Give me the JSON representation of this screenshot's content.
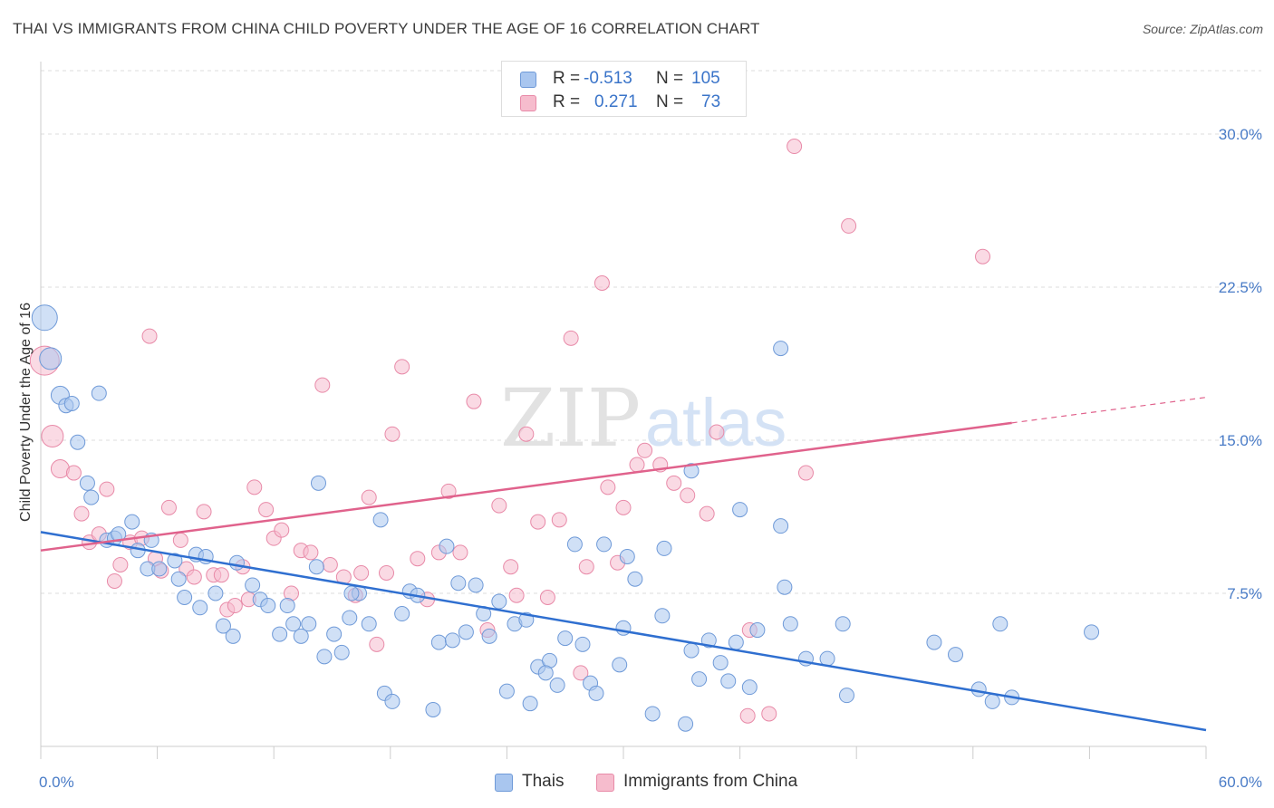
{
  "header": {
    "title": "THAI VS IMMIGRANTS FROM CHINA CHILD POVERTY UNDER THE AGE OF 16 CORRELATION CHART",
    "source": "Source: ZipAtlas.com"
  },
  "watermark": {
    "part1": "ZIP",
    "part2": "atlas"
  },
  "colors": {
    "thais_fill": "#a9c6ef",
    "thais_stroke": "#6f9ad8",
    "thais_line": "#2f6fd0",
    "china_fill": "#f6bccd",
    "china_stroke": "#e88aa8",
    "china_line": "#e0628c",
    "tick_text": "#4a7cc7",
    "grid": "#dcdcdc"
  },
  "legend": {
    "rows": [
      {
        "r_label": "R =",
        "r_value": "-0.513",
        "n_label": "N =",
        "n_value": "105"
      },
      {
        "r_label": "R =",
        "r_value": "0.271",
        "n_label": "N =",
        "n_value": "73"
      }
    ]
  },
  "bottom_legend": {
    "thais": "Thais",
    "china": "Immigrants from China"
  },
  "chart_data": {
    "type": "scatter",
    "title": "THAI VS IMMIGRANTS FROM CHINA CHILD POVERTY UNDER THE AGE OF 16 CORRELATION CHART",
    "xlabel": "",
    "ylabel": "Child Poverty Under the Age of 16",
    "xlim": [
      0,
      60
    ],
    "ylim": [
      0,
      31
    ],
    "x_ticks_labeled": [
      "0.0%",
      "60.0%"
    ],
    "y_ticks": [
      {
        "value": 7.5,
        "label": "7.5%"
      },
      {
        "value": 15.0,
        "label": "15.0%"
      },
      {
        "value": 22.5,
        "label": "22.5%"
      },
      {
        "value": 30.0,
        "label": "30.0%"
      }
    ],
    "grid": true,
    "legend_position": "top-center",
    "series": [
      {
        "name": "Thais",
        "r": -0.513,
        "n": 105,
        "trend": {
          "x_start": 0,
          "y_start": 10.5,
          "x_end": 60,
          "y_end": 0.8,
          "dashed_from": null
        },
        "points": [
          [
            0.2,
            21.0,
            14
          ],
          [
            0.5,
            19.0,
            12
          ],
          [
            1.0,
            17.2,
            10
          ],
          [
            1.3,
            16.7,
            8
          ],
          [
            1.6,
            16.8,
            8
          ],
          [
            3.0,
            17.3,
            8
          ],
          [
            1.9,
            14.9,
            8
          ],
          [
            2.4,
            12.9,
            8
          ],
          [
            2.6,
            12.2,
            8
          ],
          [
            3.4,
            10.1,
            8
          ],
          [
            3.8,
            10.2,
            8
          ],
          [
            4.0,
            10.4,
            8
          ],
          [
            4.7,
            11.0,
            8
          ],
          [
            5.0,
            9.6,
            8
          ],
          [
            5.5,
            8.7,
            8
          ],
          [
            6.1,
            8.7,
            8
          ],
          [
            5.7,
            10.1,
            8
          ],
          [
            6.9,
            9.1,
            8
          ],
          [
            7.1,
            8.2,
            8
          ],
          [
            7.4,
            7.3,
            8
          ],
          [
            8.0,
            9.4,
            8
          ],
          [
            8.2,
            6.8,
            8
          ],
          [
            8.5,
            9.3,
            8
          ],
          [
            9.0,
            7.5,
            8
          ],
          [
            9.4,
            5.9,
            8
          ],
          [
            9.9,
            5.4,
            8
          ],
          [
            10.1,
            9.0,
            8
          ],
          [
            10.9,
            7.9,
            8
          ],
          [
            11.3,
            7.2,
            8
          ],
          [
            11.7,
            6.9,
            8
          ],
          [
            12.3,
            5.5,
            8
          ],
          [
            12.7,
            6.9,
            8
          ],
          [
            13.0,
            6.0,
            8
          ],
          [
            13.4,
            5.4,
            8
          ],
          [
            13.8,
            6.0,
            8
          ],
          [
            14.3,
            12.9,
            8
          ],
          [
            14.6,
            4.4,
            8
          ],
          [
            14.2,
            8.8,
            8
          ],
          [
            15.1,
            5.5,
            8
          ],
          [
            15.5,
            4.6,
            8
          ],
          [
            15.9,
            6.3,
            8
          ],
          [
            16.4,
            7.5,
            8
          ],
          [
            16.9,
            6.0,
            8
          ],
          [
            17.5,
            11.1,
            8
          ],
          [
            17.7,
            2.6,
            8
          ],
          [
            18.1,
            2.2,
            8
          ],
          [
            18.6,
            6.5,
            8
          ],
          [
            19.0,
            7.6,
            8
          ],
          [
            19.4,
            7.4,
            8
          ],
          [
            20.2,
            1.8,
            8
          ],
          [
            20.5,
            5.1,
            8
          ],
          [
            20.9,
            9.8,
            8
          ],
          [
            21.2,
            5.2,
            8
          ],
          [
            21.9,
            5.6,
            8
          ],
          [
            22.4,
            7.9,
            8
          ],
          [
            22.8,
            6.5,
            8
          ],
          [
            23.1,
            5.4,
            8
          ],
          [
            23.6,
            7.1,
            8
          ],
          [
            24.0,
            2.7,
            8
          ],
          [
            24.4,
            6.0,
            8
          ],
          [
            25.0,
            6.2,
            8
          ],
          [
            25.2,
            2.1,
            8
          ],
          [
            25.6,
            3.9,
            8
          ],
          [
            26.2,
            4.2,
            8
          ],
          [
            26.6,
            3.0,
            8
          ],
          [
            27.0,
            5.3,
            8
          ],
          [
            27.5,
            9.9,
            8
          ],
          [
            27.9,
            5.0,
            8
          ],
          [
            28.3,
            3.1,
            8
          ],
          [
            28.6,
            2.6,
            8
          ],
          [
            29.0,
            9.9,
            8
          ],
          [
            29.8,
            4.0,
            8
          ],
          [
            30.0,
            5.8,
            8
          ],
          [
            30.2,
            9.3,
            8
          ],
          [
            30.6,
            8.2,
            8
          ],
          [
            31.5,
            1.6,
            8
          ],
          [
            32.0,
            6.4,
            8
          ],
          [
            32.1,
            9.7,
            8
          ],
          [
            33.2,
            1.1,
            8
          ],
          [
            33.5,
            4.7,
            8
          ],
          [
            33.9,
            3.3,
            8
          ],
          [
            34.4,
            5.2,
            8
          ],
          [
            35.0,
            4.1,
            8
          ],
          [
            35.4,
            3.2,
            8
          ],
          [
            35.8,
            5.1,
            8
          ],
          [
            36.5,
            2.9,
            8
          ],
          [
            36.9,
            5.7,
            8
          ],
          [
            38.1,
            10.8,
            8
          ],
          [
            38.3,
            7.8,
            8
          ],
          [
            38.6,
            6.0,
            8
          ],
          [
            36.0,
            11.6,
            8
          ],
          [
            38.1,
            19.5,
            8
          ],
          [
            39.4,
            4.3,
            8
          ],
          [
            40.5,
            4.3,
            8
          ],
          [
            41.3,
            6.0,
            8
          ],
          [
            41.5,
            2.5,
            8
          ],
          [
            46.0,
            5.1,
            8
          ],
          [
            47.1,
            4.5,
            8
          ],
          [
            48.3,
            2.8,
            8
          ],
          [
            49.0,
            2.2,
            8
          ],
          [
            49.4,
            6.0,
            8
          ],
          [
            50.0,
            2.4,
            8
          ],
          [
            54.1,
            5.6,
            8
          ],
          [
            33.5,
            13.5,
            8
          ],
          [
            16.0,
            7.5,
            8
          ],
          [
            21.5,
            8.0,
            8
          ],
          [
            26.0,
            3.6,
            8
          ]
        ]
      },
      {
        "name": "Immigrants from China",
        "r": 0.271,
        "n": 73,
        "trend": {
          "x_start": 0,
          "y_start": 9.6,
          "x_end": 60,
          "y_end": 17.1,
          "dashed_from": 50
        },
        "points": [
          [
            0.2,
            18.9,
            16
          ],
          [
            0.6,
            15.2,
            12
          ],
          [
            1.0,
            13.6,
            10
          ],
          [
            1.7,
            13.4,
            8
          ],
          [
            2.1,
            11.4,
            8
          ],
          [
            2.5,
            10.0,
            8
          ],
          [
            3.0,
            10.4,
            8
          ],
          [
            3.4,
            12.6,
            8
          ],
          [
            3.8,
            8.1,
            8
          ],
          [
            4.1,
            8.9,
            8
          ],
          [
            4.6,
            10.0,
            8
          ],
          [
            5.2,
            10.2,
            8
          ],
          [
            5.6,
            20.1,
            8
          ],
          [
            5.9,
            9.2,
            8
          ],
          [
            6.2,
            8.6,
            8
          ],
          [
            6.6,
            11.7,
            8
          ],
          [
            7.2,
            10.1,
            8
          ],
          [
            7.5,
            8.7,
            8
          ],
          [
            7.9,
            8.3,
            8
          ],
          [
            8.4,
            11.5,
            8
          ],
          [
            8.9,
            8.4,
            8
          ],
          [
            9.3,
            8.4,
            8
          ],
          [
            9.6,
            6.7,
            8
          ],
          [
            10.0,
            6.9,
            8
          ],
          [
            10.4,
            8.8,
            8
          ],
          [
            10.7,
            7.2,
            8
          ],
          [
            11.0,
            12.7,
            8
          ],
          [
            11.6,
            11.6,
            8
          ],
          [
            12.0,
            10.2,
            8
          ],
          [
            12.4,
            10.6,
            8
          ],
          [
            12.9,
            7.5,
            8
          ],
          [
            13.4,
            9.6,
            8
          ],
          [
            13.9,
            9.5,
            8
          ],
          [
            14.5,
            17.7,
            8
          ],
          [
            14.9,
            8.9,
            8
          ],
          [
            15.6,
            8.3,
            8
          ],
          [
            16.2,
            7.4,
            8
          ],
          [
            16.5,
            8.5,
            8
          ],
          [
            16.9,
            12.2,
            8
          ],
          [
            17.3,
            5.0,
            8
          ],
          [
            17.8,
            8.5,
            8
          ],
          [
            18.1,
            15.3,
            8
          ],
          [
            18.6,
            18.6,
            8
          ],
          [
            19.4,
            9.2,
            8
          ],
          [
            19.9,
            7.2,
            8
          ],
          [
            20.5,
            9.5,
            8
          ],
          [
            21.0,
            12.5,
            8
          ],
          [
            21.6,
            9.5,
            8
          ],
          [
            22.3,
            16.9,
            8
          ],
          [
            23.0,
            5.7,
            8
          ],
          [
            23.6,
            11.8,
            8
          ],
          [
            24.2,
            8.8,
            8
          ],
          [
            25.0,
            15.3,
            8
          ],
          [
            25.6,
            11.0,
            8
          ],
          [
            26.1,
            7.3,
            8
          ],
          [
            26.7,
            11.1,
            8
          ],
          [
            27.3,
            20.0,
            8
          ],
          [
            27.8,
            3.6,
            8
          ],
          [
            28.1,
            8.8,
            8
          ],
          [
            28.9,
            22.7,
            8
          ],
          [
            29.2,
            12.7,
            8
          ],
          [
            29.7,
            9.0,
            8
          ],
          [
            30.0,
            11.7,
            8
          ],
          [
            30.7,
            13.8,
            8
          ],
          [
            31.1,
            14.5,
            8
          ],
          [
            31.9,
            13.8,
            8
          ],
          [
            32.6,
            12.9,
            8
          ],
          [
            33.3,
            12.3,
            8
          ],
          [
            34.3,
            11.4,
            8
          ],
          [
            34.8,
            15.4,
            8
          ],
          [
            36.5,
            5.7,
            8
          ],
          [
            37.5,
            1.6,
            8
          ],
          [
            38.8,
            29.4,
            8
          ],
          [
            39.4,
            13.4,
            8
          ],
          [
            41.6,
            25.5,
            8
          ],
          [
            48.5,
            24.0,
            8
          ],
          [
            24.5,
            7.4,
            8
          ],
          [
            36.4,
            1.5,
            0
          ]
        ]
      }
    ]
  }
}
